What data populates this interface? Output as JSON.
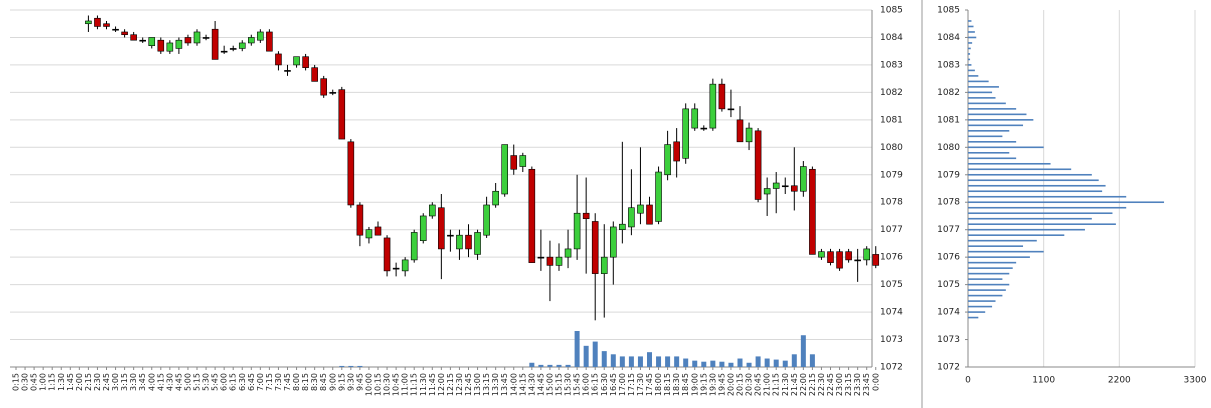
{
  "chart_data": [
    {
      "type": "candlestick",
      "categories": [
        "0:15",
        "0:30",
        "0:45",
        "1:00",
        "1:15",
        "1:30",
        "1:45",
        "2:00",
        "2:15",
        "2:30",
        "2:45",
        "3:00",
        "3:15",
        "3:30",
        "3:45",
        "4:00",
        "4:15",
        "4:30",
        "4:45",
        "5:00",
        "5:15",
        "5:30",
        "5:45",
        "6:00",
        "6:15",
        "6:30",
        "6:45",
        "7:00",
        "7:15",
        "7:30",
        "7:45",
        "8:00",
        "8:15",
        "8:30",
        "8:45",
        "9:00",
        "9:15",
        "9:30",
        "9:45",
        "10:00",
        "10:15",
        "10:30",
        "10:45",
        "11:00",
        "11:15",
        "11:30",
        "11:45",
        "12:00",
        "12:15",
        "12:30",
        "12:45",
        "13:00",
        "13:15",
        "13:30",
        "13:45",
        "14:00",
        "14:15",
        "14:30",
        "14:45",
        "15:00",
        "15:15",
        "15:30",
        "15:45",
        "16:00",
        "16:15",
        "16:30",
        "16:45",
        "17:00",
        "17:15",
        "17:30",
        "17:45",
        "18:00",
        "18:15",
        "18:30",
        "18:45",
        "19:00",
        "19:15",
        "19:30",
        "19:45",
        "20:00",
        "20:15",
        "20:30",
        "20:45",
        "21:00",
        "21:15",
        "21:30",
        "21:45",
        "22:00",
        "22:15",
        "22:30",
        "22:45",
        "23:00",
        "23:15",
        "23:30",
        "23:45",
        "0:00"
      ],
      "open": [
        null,
        null,
        null,
        null,
        null,
        null,
        null,
        null,
        1084.5,
        1084.7,
        1084.5,
        1084.3,
        1084.2,
        1084.1,
        1083.9,
        1083.7,
        1083.9,
        1083.5,
        1083.6,
        1084.0,
        1083.8,
        1084.0,
        1084.3,
        1083.5,
        1083.6,
        1083.6,
        1083.8,
        1083.9,
        1084.2,
        1083.4,
        1082.8,
        1083.0,
        1083.3,
        1082.9,
        1082.5,
        1082.0,
        1082.1,
        1080.2,
        1077.9,
        1076.7,
        1077.1,
        1076.7,
        1075.6,
        1075.5,
        1075.9,
        1076.6,
        1077.5,
        1077.8,
        1076.8,
        1076.3,
        1076.8,
        1076.1,
        1076.8,
        1077.9,
        1078.3,
        1079.7,
        1079.3,
        1079.2,
        1076.0,
        1076.0,
        1075.7,
        1076.0,
        1076.3,
        1077.6,
        1077.3,
        1075.4,
        1076.0,
        1077.0,
        1077.1,
        1077.6,
        1077.9,
        1077.3,
        1079.0,
        1080.2,
        1079.6,
        1080.7,
        1080.7,
        1080.7,
        1082.3,
        1081.4,
        1081.0,
        1080.2,
        1080.6,
        1078.3,
        1078.5,
        1078.6,
        1078.6,
        1078.4,
        1079.2,
        1076.0,
        1076.2,
        1076.2,
        1076.2,
        1075.9,
        1075.9,
        1076.1
      ],
      "high": [
        null,
        null,
        null,
        null,
        null,
        null,
        null,
        null,
        1084.8,
        1084.8,
        1084.6,
        1084.4,
        1084.3,
        1084.2,
        1084.0,
        1084.0,
        1084.0,
        1083.9,
        1084.0,
        1084.1,
        1084.3,
        1084.1,
        1084.6,
        1083.7,
        1083.7,
        1083.9,
        1084.1,
        1084.3,
        1084.3,
        1083.5,
        1083.0,
        1083.3,
        1083.4,
        1083.0,
        1082.6,
        1082.1,
        1082.2,
        1080.3,
        1078.0,
        1077.1,
        1077.3,
        1076.8,
        1075.8,
        1076.0,
        1077.0,
        1077.6,
        1078.0,
        1078.3,
        1077.0,
        1077.0,
        1077.2,
        1077.0,
        1078.2,
        1078.7,
        1080.1,
        1080.1,
        1079.8,
        1079.3,
        1077.0,
        1076.6,
        1076.5,
        1077.0,
        1079.0,
        1078.9,
        1077.6,
        1077.2,
        1077.3,
        1080.2,
        1079.2,
        1080.0,
        1078.2,
        1079.3,
        1080.6,
        1080.7,
        1081.6,
        1081.6,
        1080.8,
        1082.5,
        1082.5,
        1082.1,
        1081.5,
        1080.9,
        1080.7,
        1078.9,
        1079.1,
        1078.9,
        1080.0,
        1079.5,
        1079.3,
        1076.3,
        1076.3,
        1076.3,
        1076.3,
        1076.3,
        1076.4,
        1076.4
      ],
      "low": [
        null,
        null,
        null,
        null,
        null,
        null,
        null,
        null,
        1084.2,
        1084.3,
        1084.3,
        1084.2,
        1084.0,
        1083.9,
        1083.8,
        1083.6,
        1083.4,
        1083.4,
        1083.4,
        1083.7,
        1083.7,
        1083.9,
        1083.2,
        1083.4,
        1083.5,
        1083.5,
        1083.7,
        1083.8,
        1083.5,
        1082.8,
        1082.6,
        1082.9,
        1082.8,
        1082.4,
        1081.8,
        1081.9,
        1080.3,
        1077.8,
        1076.4,
        1076.5,
        1076.8,
        1075.3,
        1075.3,
        1075.3,
        1075.8,
        1076.5,
        1077.4,
        1075.2,
        1076.2,
        1075.9,
        1076.0,
        1075.9,
        1076.7,
        1077.8,
        1078.2,
        1079.0,
        1079.1,
        1075.8,
        1075.5,
        1074.4,
        1075.5,
        1075.6,
        1075.9,
        1075.4,
        1073.7,
        1073.8,
        1075.0,
        1076.5,
        1076.8,
        1077.2,
        1077.2,
        1077.2,
        1078.8,
        1078.9,
        1079.4,
        1080.6,
        1080.6,
        1080.6,
        1081.3,
        1081.1,
        1080.2,
        1079.9,
        1078.0,
        1077.5,
        1077.6,
        1078.3,
        1077.7,
        1078.2,
        1076.1,
        1075.9,
        1075.7,
        1075.5,
        1075.8,
        1075.1,
        1075.7,
        1075.6
      ],
      "close": [
        null,
        null,
        null,
        null,
        null,
        null,
        null,
        null,
        1084.6,
        1084.4,
        1084.4,
        1084.3,
        1084.1,
        1083.9,
        1083.9,
        1084.0,
        1083.5,
        1083.8,
        1083.9,
        1083.8,
        1084.2,
        1084.0,
        1083.2,
        1083.5,
        1083.6,
        1083.8,
        1084.0,
        1084.2,
        1083.5,
        1083.0,
        1082.8,
        1083.3,
        1082.9,
        1082.4,
        1081.9,
        1082.0,
        1080.3,
        1077.9,
        1076.8,
        1077.0,
        1076.8,
        1075.5,
        1075.6,
        1075.9,
        1076.9,
        1077.5,
        1077.9,
        1076.3,
        1076.8,
        1076.8,
        1076.3,
        1076.9,
        1077.9,
        1078.4,
        1080.1,
        1079.2,
        1079.7,
        1075.8,
        1076.0,
        1075.7,
        1076.0,
        1076.3,
        1077.6,
        1077.4,
        1075.4,
        1076.0,
        1077.1,
        1077.2,
        1077.8,
        1077.9,
        1077.2,
        1079.1,
        1080.1,
        1079.5,
        1081.4,
        1081.4,
        1080.7,
        1082.3,
        1081.4,
        1081.4,
        1080.2,
        1080.7,
        1078.1,
        1078.5,
        1078.7,
        1078.6,
        1078.4,
        1079.3,
        1076.1,
        1076.2,
        1075.8,
        1075.6,
        1075.9,
        1075.9,
        1076.3,
        1075.7
      ],
      "volume": [
        null,
        null,
        null,
        null,
        null,
        null,
        null,
        null,
        null,
        null,
        null,
        null,
        null,
        null,
        null,
        null,
        null,
        null,
        null,
        null,
        null,
        null,
        null,
        null,
        null,
        null,
        null,
        null,
        null,
        null,
        null,
        null,
        null,
        null,
        null,
        null,
        1,
        1,
        1,
        null,
        null,
        null,
        null,
        null,
        null,
        null,
        null,
        null,
        null,
        null,
        null,
        null,
        null,
        null,
        null,
        null,
        null,
        4,
        2,
        2,
        2,
        2,
        34,
        20,
        24,
        15,
        12,
        10,
        10,
        10,
        14,
        10,
        10,
        10,
        8,
        6,
        5,
        6,
        5,
        4,
        8,
        4,
        10,
        8,
        7,
        6,
        12,
        30,
        12,
        null,
        null,
        null,
        null,
        null,
        null,
        null
      ],
      "up_color": "#3ccf3c",
      "down_color": "#c00000",
      "volume_color": "#4f81bd",
      "ylim": [
        1072,
        1085
      ],
      "yticks": [
        1072,
        1073,
        1074,
        1075,
        1076,
        1077,
        1078,
        1079,
        1080,
        1081,
        1082,
        1083,
        1084,
        1085
      ],
      "grid": true
    },
    {
      "type": "barh",
      "y": [
        1084.6,
        1084.4,
        1084.2,
        1084.0,
        1083.8,
        1083.6,
        1083.4,
        1083.2,
        1083.0,
        1082.8,
        1082.6,
        1082.4,
        1082.2,
        1082.0,
        1081.8,
        1081.6,
        1081.4,
        1081.2,
        1081.0,
        1080.8,
        1080.6,
        1080.4,
        1080.2,
        1080.0,
        1079.8,
        1079.6,
        1079.4,
        1079.2,
        1079.0,
        1078.8,
        1078.6,
        1078.4,
        1078.2,
        1078.0,
        1077.8,
        1077.6,
        1077.4,
        1077.2,
        1077.0,
        1076.8,
        1076.6,
        1076.4,
        1076.2,
        1076.0,
        1075.8,
        1075.6,
        1075.4,
        1075.2,
        1075.0,
        1074.8,
        1074.6,
        1074.4,
        1074.2,
        1074.0,
        1073.8
      ],
      "values": [
        50,
        80,
        100,
        120,
        60,
        40,
        30,
        30,
        50,
        100,
        150,
        300,
        450,
        350,
        400,
        550,
        700,
        850,
        950,
        800,
        600,
        500,
        700,
        1100,
        600,
        700,
        1200,
        1500,
        1800,
        1900,
        2000,
        1950,
        2300,
        2850,
        2300,
        2100,
        1800,
        2150,
        1700,
        1400,
        1000,
        800,
        1100,
        900,
        700,
        650,
        600,
        500,
        600,
        550,
        500,
        400,
        350,
        250,
        150
      ],
      "color": "#4f81bd",
      "xlim": [
        0,
        3300
      ],
      "xticks": [
        0,
        1100,
        2200,
        3300
      ],
      "ylim": [
        1072,
        1085
      ],
      "yticks": [
        1072,
        1073,
        1074,
        1075,
        1076,
        1077,
        1078,
        1079,
        1080,
        1081,
        1082,
        1083,
        1084,
        1085
      ],
      "grid": true
    }
  ]
}
